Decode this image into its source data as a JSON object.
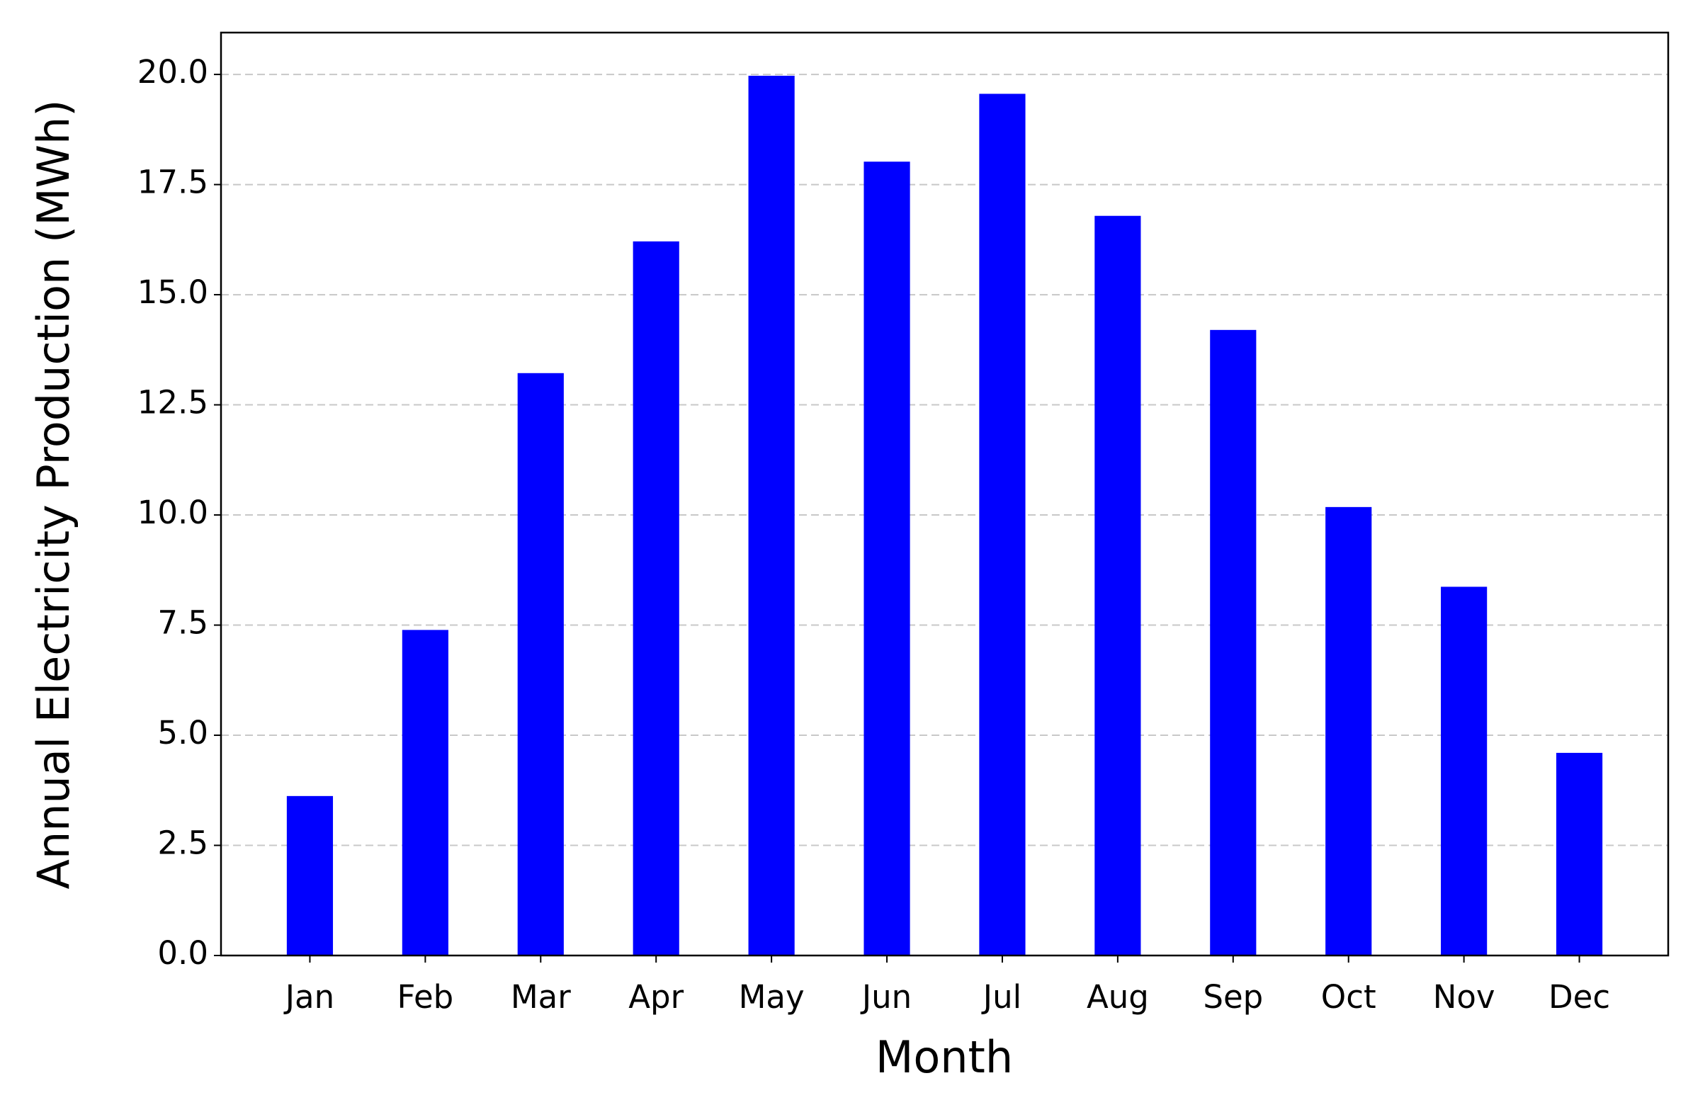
{
  "chart_data": {
    "type": "bar",
    "x_label": "Month",
    "y_label": "Annual Electricity Production (MWh)",
    "categories": [
      "Jan",
      "Feb",
      "Mar",
      "Apr",
      "May",
      "Jun",
      "Jul",
      "Aug",
      "Sep",
      "Oct",
      "Nov",
      "Dec"
    ],
    "values": [
      3.62,
      7.39,
      13.22,
      16.21,
      19.97,
      18.02,
      19.56,
      16.79,
      14.2,
      10.18,
      8.37,
      4.6
    ],
    "color": "#0000ff",
    "ylim": [
      0,
      20.95
    ],
    "yticks": [
      {
        "value": 0,
        "label": "0.0"
      },
      {
        "value": 2.5,
        "label": "2.5"
      },
      {
        "value": 5,
        "label": "5.0"
      },
      {
        "value": 7.5,
        "label": "7.5"
      },
      {
        "value": 10,
        "label": "10.0"
      },
      {
        "value": 12.5,
        "label": "12.5"
      },
      {
        "value": 15,
        "label": "15.0"
      },
      {
        "value": 17.5,
        "label": "17.5"
      },
      {
        "value": 20,
        "label": "20.0"
      }
    ],
    "grid": true
  }
}
